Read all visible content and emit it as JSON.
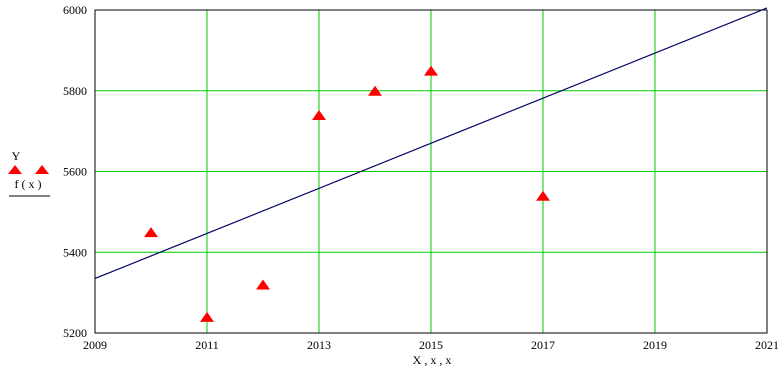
{
  "chart_data": {
    "type": "scatter",
    "xlabel": "X , x , x",
    "ylabel_top": "Y",
    "ylabel_bottom": "f ( x )",
    "xlim": [
      2009,
      2021
    ],
    "ylim": [
      5200,
      6000
    ],
    "xticks": [
      2009,
      2011,
      2013,
      2015,
      2017,
      2019,
      2021
    ],
    "yticks": [
      5200,
      5400,
      5600,
      5800,
      6000
    ],
    "grid": true,
    "series": [
      {
        "kind": "points",
        "marker": "triangle",
        "color": "#ff0000",
        "x": [
          2010,
          2011,
          2012,
          2013,
          2014,
          2015,
          2017
        ],
        "y": [
          5450,
          5240,
          5320,
          5740,
          5800,
          5850,
          5540
        ]
      },
      {
        "kind": "line",
        "color": "#000066",
        "x": [
          2009,
          2021
        ],
        "y": [
          5335,
          6005
        ]
      }
    ],
    "grid_color": "#00cc00"
  }
}
